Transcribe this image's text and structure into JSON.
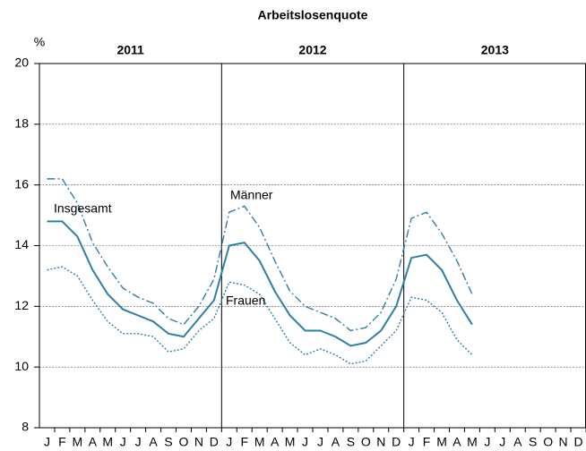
{
  "chart_data": {
    "type": "line",
    "title": "Arbeitslosenquote",
    "y_label": "%",
    "years": [
      "2011",
      "2012",
      "2013"
    ],
    "categories": [
      "J",
      "F",
      "M",
      "A",
      "M",
      "J",
      "J",
      "A",
      "S",
      "O",
      "N",
      "D",
      "J",
      "F",
      "M",
      "A",
      "M",
      "J",
      "J",
      "A",
      "S",
      "O",
      "N",
      "D",
      "J",
      "F",
      "M",
      "A",
      "M",
      "J",
      "J",
      "A",
      "S",
      "O",
      "N",
      "D"
    ],
    "series": [
      {
        "name": "Insgesamt",
        "color": "#2e7fa6",
        "dash": "solid",
        "values": [
          14.8,
          14.8,
          14.3,
          13.2,
          12.4,
          11.9,
          11.7,
          11.5,
          11.1,
          11.0,
          11.6,
          12.2,
          14.0,
          14.1,
          13.5,
          12.5,
          11.7,
          11.2,
          11.2,
          11.0,
          10.7,
          10.8,
          11.2,
          12.0,
          13.6,
          13.7,
          13.2,
          12.2,
          11.4,
          null,
          null,
          null,
          null,
          null,
          null,
          null
        ]
      },
      {
        "name": "Männer",
        "color": "#2e7fa6",
        "dash": "dashdot",
        "values": [
          16.2,
          16.2,
          15.4,
          14.1,
          13.3,
          12.6,
          12.3,
          12.1,
          11.6,
          11.4,
          12.0,
          12.9,
          15.1,
          15.3,
          14.6,
          13.5,
          12.5,
          12.0,
          11.8,
          11.6,
          11.2,
          11.3,
          11.8,
          12.9,
          14.9,
          15.1,
          14.4,
          13.5,
          12.4,
          null,
          null,
          null,
          null,
          null,
          null,
          null
        ]
      },
      {
        "name": "Frauen",
        "color": "#2e7fa6",
        "dash": "dotted",
        "values": [
          13.2,
          13.3,
          13.0,
          12.2,
          11.5,
          11.1,
          11.1,
          11.0,
          10.5,
          10.6,
          11.2,
          11.6,
          12.8,
          12.7,
          12.4,
          11.6,
          10.8,
          10.4,
          10.6,
          10.4,
          10.1,
          10.2,
          10.7,
          11.2,
          12.3,
          12.2,
          11.8,
          10.9,
          10.4,
          null,
          null,
          null,
          null,
          null,
          null,
          null
        ]
      }
    ],
    "ylim": [
      8,
      20
    ],
    "yticks": [
      8,
      10,
      12,
      14,
      16,
      18,
      20
    ],
    "grid": true
  }
}
